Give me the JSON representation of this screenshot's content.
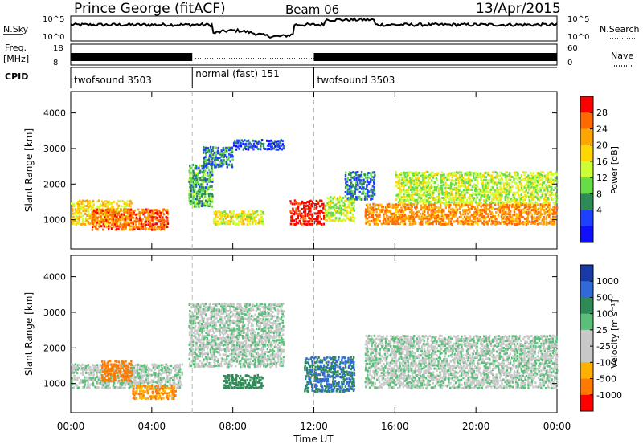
{
  "header": {
    "title": "Prince George (fitACF)",
    "beam": "Beam 06",
    "date": "13/Apr/2015"
  },
  "sky_panel": {
    "label": "N.Sky",
    "right_label": "N.Search",
    "ticks_left": [
      "10^5",
      "10^0"
    ],
    "ticks_right": [
      "10^5",
      "10^0"
    ]
  },
  "freq_panel": {
    "label_line1": "Freq.",
    "label_line2": "[MHz]",
    "right_label": "Nave",
    "ticks_left": [
      "18",
      "8"
    ],
    "ticks_right": [
      "60",
      "0"
    ]
  },
  "cpid": {
    "label": "CPID",
    "segments": [
      {
        "name": "twofsound 3503",
        "start_hour": 0,
        "end_hour": 6
      },
      {
        "name": "normal (fast) 151",
        "start_hour": 6,
        "end_hour": 12
      },
      {
        "name": "twofsound 3503",
        "start_hour": 12,
        "end_hour": 24
      }
    ]
  },
  "chart_data": [
    {
      "type": "heatmap",
      "name": "Power",
      "xlabel": "Time UT",
      "ylabel": "Slant Range [km]",
      "xlim": [
        0,
        24
      ],
      "ylim": [
        180,
        4600
      ],
      "y_ticks": [
        "1000",
        "2000",
        "3000",
        "4000"
      ],
      "colorbar": {
        "label": "Power [dB]",
        "ticks": [
          "28",
          "24",
          "20",
          "16",
          "12",
          "8",
          "4"
        ],
        "colors": [
          "#ff0000",
          "#ff6a00",
          "#ffa500",
          "#ffd700",
          "#ccff33",
          "#66dd44",
          "#2e8b57",
          "#1e40ff",
          "#1010ff"
        ]
      },
      "echo_regions": [
        {
          "t0": 0.0,
          "t1": 3.0,
          "r0": 900,
          "r1": 1600,
          "value": 18
        },
        {
          "t0": 1.0,
          "t1": 4.8,
          "r0": 750,
          "r1": 1350,
          "value": 24
        },
        {
          "t0": 5.8,
          "t1": 7.0,
          "r0": 1400,
          "r1": 2600,
          "value": 10
        },
        {
          "t0": 6.5,
          "t1": 8.0,
          "r0": 2500,
          "r1": 3100,
          "value": 8
        },
        {
          "t0": 8.0,
          "t1": 10.5,
          "r0": 3000,
          "r1": 3300,
          "value": 6
        },
        {
          "t0": 7.0,
          "t1": 9.5,
          "r0": 900,
          "r1": 1300,
          "value": 16
        },
        {
          "t0": 10.8,
          "t1": 12.5,
          "r0": 900,
          "r1": 1600,
          "value": 28
        },
        {
          "t0": 12.5,
          "t1": 14.0,
          "r0": 1000,
          "r1": 1700,
          "value": 14
        },
        {
          "t0": 13.5,
          "t1": 15.0,
          "r0": 1600,
          "r1": 2400,
          "value": 8
        },
        {
          "t0": 14.5,
          "t1": 24.0,
          "r0": 900,
          "r1": 1500,
          "value": 22
        },
        {
          "t0": 16.0,
          "t1": 24.0,
          "r0": 1500,
          "r1": 2400,
          "value": 14
        }
      ]
    },
    {
      "type": "heatmap",
      "name": "Velocity",
      "xlabel": "Time UT",
      "ylabel": "Slant Range [km]",
      "xlim": [
        0,
        24
      ],
      "ylim": [
        180,
        4600
      ],
      "y_ticks": [
        "1000",
        "2000",
        "3000",
        "4000"
      ],
      "x_ticks": [
        "00:00",
        "04:00",
        "08:00",
        "12:00",
        "16:00",
        "20:00",
        "00:00"
      ],
      "colorbar": {
        "label": "Velocity [m s⁻¹]",
        "ticks": [
          "1000",
          "500",
          "100",
          "25",
          "-25",
          "-100",
          "-500",
          "-1000"
        ],
        "colors": [
          "#1a3aa8",
          "#2f6ad8",
          "#2e8b57",
          "#5bbf7a",
          "#c8c8c8",
          "#c8c8c8",
          "#ffb000",
          "#ff7a00",
          "#ff0000"
        ]
      },
      "echo_regions": [
        {
          "t0": 0.0,
          "t1": 5.5,
          "r0": 900,
          "r1": 1600,
          "value": 0
        },
        {
          "t0": 1.5,
          "t1": 3.0,
          "r0": 1100,
          "r1": 1700,
          "value": -600
        },
        {
          "t0": 3.0,
          "t1": 5.2,
          "r0": 600,
          "r1": 1000,
          "value": -300
        },
        {
          "t0": 5.8,
          "t1": 10.5,
          "r0": 1500,
          "r1": 3300,
          "value": 0
        },
        {
          "t0": 7.5,
          "t1": 9.5,
          "r0": 900,
          "r1": 1300,
          "value": 200
        },
        {
          "t0": 11.5,
          "t1": 14.0,
          "r0": 800,
          "r1": 1800,
          "value": 300
        },
        {
          "t0": 14.5,
          "t1": 24.0,
          "r0": 900,
          "r1": 2400,
          "value": 0
        }
      ]
    }
  ]
}
